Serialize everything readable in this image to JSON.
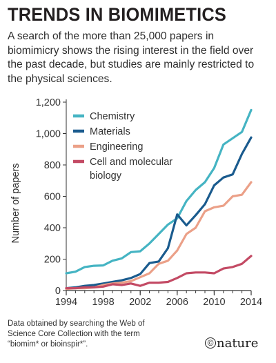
{
  "title": "TRENDS IN BIOMIMETICS",
  "subtitle": "A search of the more than 25,000 papers in biomimicry shows the rising interest in the field over the past decade, but studies are mainly restricted to the physical sciences.",
  "footnote": "Data obtained by searching the Web of Science Core Collection with the term “biomim* or bioinspir*”.",
  "brand": {
    "symbol": "©",
    "name": "nature"
  },
  "chart_data": {
    "type": "line",
    "ylabel": "Number of papers",
    "xlabel": "",
    "xlim": [
      1994,
      2014
    ],
    "ylim": [
      0,
      1200
    ],
    "x_ticks": [
      1994,
      1998,
      2002,
      2006,
      2010,
      2014
    ],
    "y_ticks": [
      0,
      200,
      400,
      600,
      800,
      1000,
      1200
    ],
    "y_tick_labels": [
      "0",
      "200",
      "400",
      "600",
      "800",
      "1,000",
      "1,200"
    ],
    "grid": false,
    "legend_position": "top-left",
    "x": [
      1994,
      1995,
      1996,
      1997,
      1998,
      1999,
      2000,
      2001,
      2002,
      2003,
      2004,
      2005,
      2006,
      2007,
      2008,
      2009,
      2010,
      2011,
      2012,
      2013,
      2014
    ],
    "series": [
      {
        "name": "Chemistry",
        "color": "#45b4c3",
        "values": [
          110,
          120,
          150,
          158,
          160,
          190,
          205,
          245,
          250,
          300,
          360,
          420,
          460,
          570,
          640,
          690,
          780,
          930,
          970,
          1010,
          1150
        ]
      },
      {
        "name": "Materials",
        "color": "#1a5b8e",
        "values": [
          15,
          20,
          30,
          35,
          45,
          55,
          65,
          80,
          105,
          175,
          185,
          270,
          485,
          415,
          480,
          550,
          670,
          720,
          740,
          870,
          975
        ]
      },
      {
        "name": "Engineering",
        "color": "#eba088",
        "values": [
          10,
          15,
          15,
          20,
          35,
          45,
          50,
          60,
          85,
          110,
          170,
          190,
          255,
          360,
          400,
          505,
          530,
          540,
          600,
          610,
          690
        ]
      },
      {
        "name": "Cell and molecular biology",
        "name_lines": [
          "Cell and molecular",
          "biology"
        ],
        "color": "#c34a64",
        "values": [
          15,
          15,
          20,
          20,
          25,
          40,
          35,
          45,
          30,
          50,
          50,
          55,
          80,
          110,
          115,
          115,
          110,
          140,
          150,
          170,
          220
        ]
      }
    ]
  }
}
